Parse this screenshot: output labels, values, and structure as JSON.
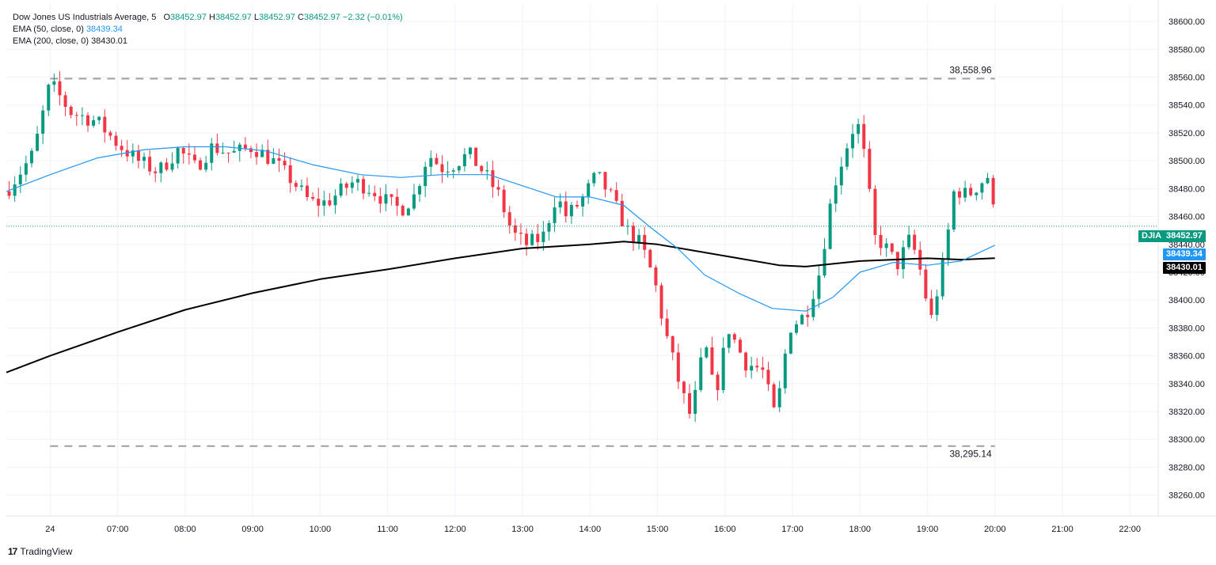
{
  "legend": {
    "title": "Dow Jones US Industrials Average, 5",
    "open_label": "O",
    "open": "38452.97",
    "high_label": "H",
    "high": "38452.97",
    "low_label": "L",
    "low": "38452.97",
    "close_label": "C",
    "close": "38452.97",
    "change": "−2.32 (−0.01%)",
    "ema50_label": "EMA (50, close, 0)",
    "ema50_value": "38439.34",
    "ema200_label": "EMA (200, close, 0)",
    "ema200_value": "38430.01"
  },
  "tags": {
    "symbol": "DJIA",
    "last_price": "38452.97",
    "ema50": "38439.34",
    "ema200": "38430.01"
  },
  "levels": {
    "high_label": "38,558.96",
    "low_label": "38,295.14"
  },
  "brand": {
    "logo": "17",
    "name": "TradingView"
  },
  "colors": {
    "up": "#089981",
    "down": "#f23645",
    "ema50": "#2196f3",
    "ema200": "#000000",
    "level": "#9e9e9e",
    "grid": "#f0f3fa",
    "text": "#131722"
  },
  "chart_data": {
    "type": "candlestick",
    "interval": "5",
    "ylim": [
      38245,
      38612
    ],
    "y_ticks": [
      38260,
      38280,
      38300,
      38320,
      38340,
      38360,
      38380,
      38400,
      38420,
      38440,
      38460,
      38480,
      38500,
      38520,
      38540,
      38560,
      38580,
      38600
    ],
    "x_range_hours": [
      5.35,
      22.42
    ],
    "x_ticks": [
      {
        "t": 6.0,
        "label": "24"
      },
      {
        "t": 7.0,
        "label": "07:00"
      },
      {
        "t": 8.0,
        "label": "08:00"
      },
      {
        "t": 9.0,
        "label": "09:00"
      },
      {
        "t": 10.0,
        "label": "10:00"
      },
      {
        "t": 11.0,
        "label": "11:00"
      },
      {
        "t": 12.0,
        "label": "12:00"
      },
      {
        "t": 13.0,
        "label": "13:00"
      },
      {
        "t": 14.0,
        "label": "14:00"
      },
      {
        "t": 15.0,
        "label": "15:00"
      },
      {
        "t": 16.0,
        "label": "16:00"
      },
      {
        "t": 17.0,
        "label": "17:00"
      },
      {
        "t": 18.0,
        "label": "18:00"
      },
      {
        "t": 19.0,
        "label": "19:00"
      },
      {
        "t": 20.0,
        "label": "20:00"
      },
      {
        "t": 21.0,
        "label": "21:00"
      },
      {
        "t": 22.0,
        "label": "22:00"
      }
    ],
    "levels": [
      {
        "value": 38558.96,
        "t_start": 6.0,
        "t_end": 20.0
      },
      {
        "value": 38295.14,
        "t_start": 6.0,
        "t_end": 20.0
      }
    ],
    "last_price": 38452.97,
    "keyframes": [
      [
        5.35,
        38478
      ],
      [
        5.75,
        38505
      ],
      [
        6.0,
        38556
      ],
      [
        6.3,
        38535
      ],
      [
        6.7,
        38528
      ],
      [
        7.0,
        38512
      ],
      [
        7.3,
        38500
      ],
      [
        7.6,
        38492
      ],
      [
        7.9,
        38508
      ],
      [
        8.15,
        38495
      ],
      [
        8.4,
        38510
      ],
      [
        8.7,
        38505
      ],
      [
        9.0,
        38510
      ],
      [
        9.3,
        38500
      ],
      [
        9.6,
        38485
      ],
      [
        9.85,
        38470
      ],
      [
        10.1,
        38470
      ],
      [
        10.3,
        38478
      ],
      [
        10.5,
        38485
      ],
      [
        10.75,
        38480
      ],
      [
        11.0,
        38470
      ],
      [
        11.2,
        38465
      ],
      [
        11.4,
        38475
      ],
      [
        11.6,
        38505
      ],
      [
        11.8,
        38495
      ],
      [
        12.0,
        38498
      ],
      [
        12.2,
        38505
      ],
      [
        12.45,
        38490
      ],
      [
        12.65,
        38475
      ],
      [
        12.85,
        38448
      ],
      [
        13.05,
        38440
      ],
      [
        13.3,
        38445
      ],
      [
        13.5,
        38475
      ],
      [
        13.65,
        38460
      ],
      [
        13.85,
        38470
      ],
      [
        14.1,
        38490
      ],
      [
        14.3,
        38475
      ],
      [
        14.55,
        38450
      ],
      [
        14.75,
        38440
      ],
      [
        14.95,
        38415
      ],
      [
        15.1,
        38380
      ],
      [
        15.35,
        38335
      ],
      [
        15.5,
        38315
      ],
      [
        15.7,
        38370
      ],
      [
        15.85,
        38330
      ],
      [
        16.05,
        38380
      ],
      [
        16.3,
        38355
      ],
      [
        16.55,
        38350
      ],
      [
        16.75,
        38315
      ],
      [
        16.95,
        38380
      ],
      [
        17.2,
        38390
      ],
      [
        17.4,
        38420
      ],
      [
        17.6,
        38480
      ],
      [
        17.8,
        38510
      ],
      [
        17.95,
        38530
      ],
      [
        18.1,
        38495
      ],
      [
        18.2,
        38445
      ],
      [
        18.35,
        38440
      ],
      [
        18.55,
        38425
      ],
      [
        18.75,
        38445
      ],
      [
        18.9,
        38420
      ],
      [
        19.05,
        38385
      ],
      [
        19.25,
        38430
      ],
      [
        19.4,
        38480
      ],
      [
        19.6,
        38475
      ],
      [
        19.8,
        38485
      ],
      [
        19.92,
        38490
      ],
      [
        20.0,
        38453
      ]
    ],
    "ema50_points": [
      [
        5.35,
        38478
      ],
      [
        6.0,
        38490
      ],
      [
        6.7,
        38502
      ],
      [
        7.4,
        38508
      ],
      [
        8.0,
        38510
      ],
      [
        8.6,
        38510
      ],
      [
        9.2,
        38507
      ],
      [
        9.9,
        38497
      ],
      [
        10.6,
        38490
      ],
      [
        11.2,
        38488
      ],
      [
        11.8,
        38490
      ],
      [
        12.5,
        38490
      ],
      [
        13.0,
        38482
      ],
      [
        13.5,
        38474
      ],
      [
        14.0,
        38474
      ],
      [
        14.5,
        38468
      ],
      [
        14.9,
        38452
      ],
      [
        15.3,
        38437
      ],
      [
        15.7,
        38418
      ],
      [
        16.2,
        38405
      ],
      [
        16.7,
        38394
      ],
      [
        17.2,
        38392
      ],
      [
        17.6,
        38402
      ],
      [
        18.0,
        38420
      ],
      [
        18.5,
        38427
      ],
      [
        19.0,
        38425
      ],
      [
        19.5,
        38428
      ],
      [
        20.0,
        38439.34
      ]
    ],
    "ema200_points": [
      [
        5.35,
        38348
      ],
      [
        6.0,
        38360
      ],
      [
        7.0,
        38377
      ],
      [
        8.0,
        38393
      ],
      [
        9.0,
        38405
      ],
      [
        10.0,
        38415
      ],
      [
        11.0,
        38422
      ],
      [
        12.0,
        38430
      ],
      [
        13.0,
        38437
      ],
      [
        14.0,
        38440
      ],
      [
        14.5,
        38442
      ],
      [
        15.0,
        38440
      ],
      [
        15.6,
        38435
      ],
      [
        16.2,
        38430
      ],
      [
        16.8,
        38425
      ],
      [
        17.2,
        38424
      ],
      [
        17.6,
        38426
      ],
      [
        18.0,
        38428
      ],
      [
        18.5,
        38429
      ],
      [
        19.0,
        38430
      ],
      [
        19.5,
        38429
      ],
      [
        20.0,
        38430.01
      ]
    ]
  }
}
